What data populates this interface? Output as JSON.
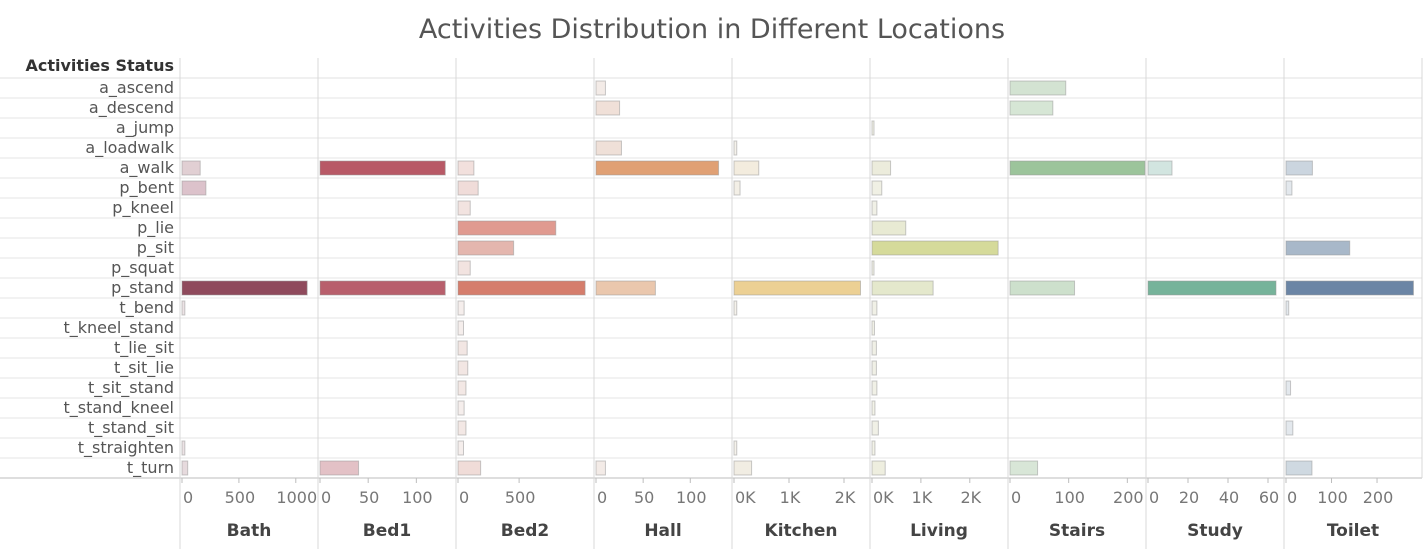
{
  "chart_data": {
    "type": "bar",
    "orientation": "horizontal",
    "title": "Activities Distribution in Different Locations",
    "row_header": "Activities Status",
    "categories": [
      "a_ascend",
      "a_descend",
      "a_jump",
      "a_loadwalk",
      "a_walk",
      "p_bent",
      "p_kneel",
      "p_lie",
      "p_sit",
      "p_squat",
      "p_stand",
      "t_bend",
      "t_kneel_stand",
      "t_lie_sit",
      "t_sit_lie",
      "t_sit_stand",
      "t_stand_kneel",
      "t_stand_sit",
      "t_straighten",
      "t_turn"
    ],
    "panels": [
      {
        "name": "Bath",
        "xlim": [
          0,
          1160
        ],
        "ticks": [
          {
            "v": 0,
            "label": "0"
          },
          {
            "v": 500,
            "label": "500"
          },
          {
            "v": 1000,
            "label": "1000"
          }
        ],
        "values": [
          0,
          0,
          0,
          0,
          160,
          210,
          0,
          0,
          0,
          0,
          1100,
          25,
          0,
          0,
          0,
          0,
          0,
          0,
          25,
          50
        ],
        "colors": [
          "#ffffff",
          "#ffffff",
          "#ffffff",
          "#ffffff",
          "#e1cfd3",
          "#dcc2cb",
          "#ffffff",
          "#ffffff",
          "#ffffff",
          "#ffffff",
          "#8f4a5c",
          "#ece3e5",
          "#ffffff",
          "#ffffff",
          "#ffffff",
          "#ffffff",
          "#ffffff",
          "#ffffff",
          "#ece3e5",
          "#e6dadd"
        ]
      },
      {
        "name": "Bed1",
        "xlim": [
          0,
          137
        ],
        "ticks": [
          {
            "v": 0,
            "label": "0"
          },
          {
            "v": 50,
            "label": "50"
          },
          {
            "v": 100,
            "label": "100"
          }
        ],
        "values": [
          0,
          0,
          0,
          0,
          130,
          0,
          0,
          0,
          0,
          0,
          130,
          0,
          0,
          0,
          0,
          0,
          0,
          0,
          0,
          40
        ],
        "colors": [
          "#ffffff",
          "#ffffff",
          "#ffffff",
          "#ffffff",
          "#b85966",
          "#ffffff",
          "#ffffff",
          "#ffffff",
          "#ffffff",
          "#ffffff",
          "#b85f6c",
          "#ffffff",
          "#ffffff",
          "#ffffff",
          "#ffffff",
          "#ffffff",
          "#ffffff",
          "#ffffff",
          "#ffffff",
          "#e3c1c6"
        ]
      },
      {
        "name": "Bed2",
        "xlim": [
          0,
          1080
        ],
        "ticks": [
          {
            "v": 0,
            "label": "0"
          },
          {
            "v": 500,
            "label": "500"
          }
        ],
        "values": [
          0,
          0,
          0,
          0,
          130,
          165,
          100,
          800,
          455,
          100,
          1040,
          50,
          45,
          75,
          80,
          65,
          50,
          65,
          45,
          185
        ],
        "colors": [
          "#ffffff",
          "#ffffff",
          "#ffffff",
          "#ffffff",
          "#f2e0dd",
          "#f0dcd9",
          "#f2e3e0",
          "#e09a90",
          "#e4b6ae",
          "#f2e3e0",
          "#d57d6c",
          "#f5eeec",
          "#f5eeec",
          "#f2e6e3",
          "#f2e6e3",
          "#f3e8e5",
          "#f5eeec",
          "#f3e8e5",
          "#f5eeec",
          "#f0dcd8"
        ]
      },
      {
        "name": "Hall",
        "xlim": [
          0,
          140
        ],
        "ticks": [
          {
            "v": 0,
            "label": "0"
          },
          {
            "v": 50,
            "label": "50"
          },
          {
            "v": 100,
            "label": "100"
          }
        ],
        "values": [
          10,
          25,
          0,
          27,
          130,
          0,
          0,
          0,
          0,
          0,
          63,
          0,
          0,
          0,
          0,
          0,
          0,
          0,
          0,
          10
        ],
        "colors": [
          "#f3ebe7",
          "#f0e0d8",
          "#ffffff",
          "#efe0d8",
          "#e0a074",
          "#ffffff",
          "#ffffff",
          "#ffffff",
          "#ffffff",
          "#ffffff",
          "#eac7ad",
          "#ffffff",
          "#ffffff",
          "#ffffff",
          "#ffffff",
          "#ffffff",
          "#ffffff",
          "#ffffff",
          "#ffffff",
          "#f3ebe7"
        ]
      },
      {
        "name": "Kitchen",
        "xlim": [
          0,
          2400
        ],
        "ticks": [
          {
            "v": 0,
            "label": "0K"
          },
          {
            "v": 1000,
            "label": "1K"
          },
          {
            "v": 2000,
            "label": "2K"
          }
        ],
        "values": [
          0,
          0,
          0,
          50,
          450,
          110,
          0,
          0,
          0,
          0,
          2300,
          50,
          0,
          0,
          0,
          0,
          0,
          0,
          50,
          320
        ],
        "colors": [
          "#ffffff",
          "#ffffff",
          "#ffffff",
          "#f5f2eb",
          "#f3ecde",
          "#f3efe6",
          "#ffffff",
          "#ffffff",
          "#ffffff",
          "#ffffff",
          "#ecd094",
          "#f5f2eb",
          "#ffffff",
          "#ffffff",
          "#ffffff",
          "#ffffff",
          "#ffffff",
          "#ffffff",
          "#f5f2eb",
          "#f1ede3"
        ]
      },
      {
        "name": "Living",
        "xlim": [
          0,
          2700
        ],
        "ticks": [
          {
            "v": 0,
            "label": "0K"
          },
          {
            "v": 1000,
            "label": "1K"
          },
          {
            "v": 2000,
            "label": "2K"
          }
        ],
        "values": [
          0,
          0,
          25,
          0,
          380,
          200,
          100,
          690,
          2580,
          40,
          1250,
          100,
          50,
          90,
          90,
          100,
          60,
          130,
          60,
          270
        ],
        "colors": [
          "#ffffff",
          "#ffffff",
          "#f3f3e8",
          "#ffffff",
          "#ececdc",
          "#f0f0e4",
          "#f0f0e6",
          "#e8ead3",
          "#d5da9a",
          "#f3f3e8",
          "#e4e8cc",
          "#f0f0e6",
          "#f3f3e8",
          "#f0f0e6",
          "#f0f0e6",
          "#f0f0e6",
          "#f3f3e8",
          "#f0f0e6",
          "#f3f3e8",
          "#eeeedf"
        ]
      },
      {
        "name": "Stairs",
        "xlim": [
          0,
          225
        ],
        "ticks": [
          {
            "v": 0,
            "label": "0"
          },
          {
            "v": 100,
            "label": "100"
          },
          {
            "v": 200,
            "label": "200"
          }
        ],
        "values": [
          95,
          73,
          0,
          0,
          230,
          0,
          0,
          0,
          0,
          0,
          110,
          0,
          0,
          0,
          0,
          0,
          0,
          0,
          0,
          47
        ],
        "colors": [
          "#d3e3d2",
          "#d6e6d5",
          "#ffffff",
          "#ffffff",
          "#9cc49b",
          "#ffffff",
          "#ffffff",
          "#ffffff",
          "#ffffff",
          "#ffffff",
          "#cde0cc",
          "#ffffff",
          "#ffffff",
          "#ffffff",
          "#ffffff",
          "#ffffff",
          "#ffffff",
          "#ffffff",
          "#ffffff",
          "#d8e6d7"
        ]
      },
      {
        "name": "Study",
        "xlim": [
          0,
          66
        ],
        "ticks": [
          {
            "v": 0,
            "label": "0"
          },
          {
            "v": 20,
            "label": "20"
          },
          {
            "v": 40,
            "label": "40"
          },
          {
            "v": 60,
            "label": "60"
          }
        ],
        "values": [
          0,
          0,
          0,
          0,
          12,
          0,
          0,
          0,
          0,
          0,
          64,
          0,
          0,
          0,
          0,
          0,
          0,
          0,
          0,
          0
        ],
        "colors": [
          "#ffffff",
          "#ffffff",
          "#ffffff",
          "#ffffff",
          "#d2e5e0",
          "#ffffff",
          "#ffffff",
          "#ffffff",
          "#ffffff",
          "#ffffff",
          "#76b39a",
          "#ffffff",
          "#ffffff",
          "#ffffff",
          "#ffffff",
          "#ffffff",
          "#ffffff",
          "#ffffff",
          "#ffffff",
          "#ffffff"
        ]
      },
      {
        "name": "Toilet",
        "xlim": [
          0,
          290
        ],
        "ticks": [
          {
            "v": 0,
            "label": "0"
          },
          {
            "v": 100,
            "label": "100"
          },
          {
            "v": 200,
            "label": "200"
          }
        ],
        "values": [
          0,
          0,
          0,
          0,
          58,
          13,
          0,
          0,
          140,
          0,
          280,
          6,
          0,
          0,
          0,
          10,
          0,
          15,
          0,
          57
        ],
        "colors": [
          "#ffffff",
          "#ffffff",
          "#ffffff",
          "#ffffff",
          "#cbd5df",
          "#e3e8ed",
          "#ffffff",
          "#ffffff",
          "#a8b8c9",
          "#ffffff",
          "#6b85a5",
          "#e3e8ed",
          "#ffffff",
          "#ffffff",
          "#ffffff",
          "#e3e8ed",
          "#ffffff",
          "#e3e8ed",
          "#ffffff",
          "#cfd9e1"
        ]
      }
    ]
  }
}
